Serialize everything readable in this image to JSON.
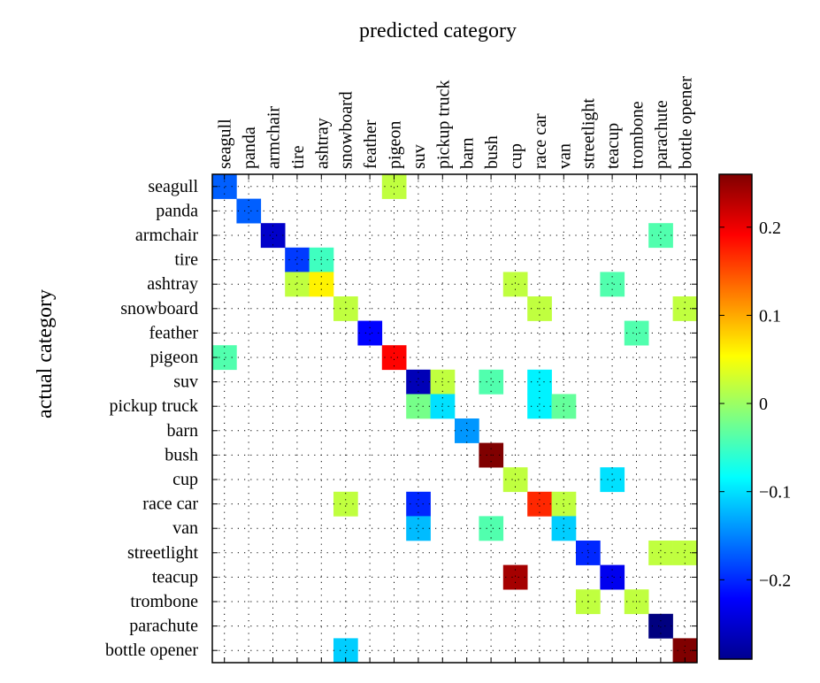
{
  "chart_data": {
    "type": "heatmap",
    "title": "",
    "xlabel": "predicted category",
    "ylabel": "actual category",
    "categories": [
      "seagull",
      "panda",
      "armchair",
      "tire",
      "ashtray",
      "snowboard",
      "feather",
      "pigeon",
      "suv",
      "pickup truck",
      "barn",
      "bush",
      "cup",
      "race car",
      "van",
      "streetlight",
      "teacup",
      "trombone",
      "parachute",
      "bottle opener"
    ],
    "grid": true,
    "colormap": "jet",
    "color_range": [
      -0.29,
      0.26
    ],
    "colorbar": {
      "ticks": [
        0.2,
        0.1,
        0,
        -0.1,
        -0.2
      ],
      "tick_labels": [
        "0.2",
        "0.1",
        "0",
        "−0.1",
        "−0.2"
      ],
      "location": "right"
    },
    "cells": [
      {
        "row": "seagull",
        "col": "seagull",
        "value": -0.17
      },
      {
        "row": "seagull",
        "col": "pigeon",
        "value": 0.02
      },
      {
        "row": "panda",
        "col": "panda",
        "value": -0.17
      },
      {
        "row": "armchair",
        "col": "armchair",
        "value": -0.25
      },
      {
        "row": "armchair",
        "col": "parachute",
        "value": -0.04
      },
      {
        "row": "tire",
        "col": "tire",
        "value": -0.19
      },
      {
        "row": "tire",
        "col": "ashtray",
        "value": -0.05
      },
      {
        "row": "ashtray",
        "col": "tire",
        "value": 0.02
      },
      {
        "row": "ashtray",
        "col": "ashtray",
        "value": 0.06
      },
      {
        "row": "ashtray",
        "col": "cup",
        "value": 0.02
      },
      {
        "row": "ashtray",
        "col": "teacup",
        "value": -0.04
      },
      {
        "row": "snowboard",
        "col": "snowboard",
        "value": 0.02
      },
      {
        "row": "snowboard",
        "col": "race car",
        "value": 0.02
      },
      {
        "row": "snowboard",
        "col": "bottle opener",
        "value": 0.02
      },
      {
        "row": "feather",
        "col": "feather",
        "value": -0.22
      },
      {
        "row": "feather",
        "col": "trombone",
        "value": -0.04
      },
      {
        "row": "pigeon",
        "col": "seagull",
        "value": -0.04
      },
      {
        "row": "pigeon",
        "col": "pigeon",
        "value": 0.19
      },
      {
        "row": "suv",
        "col": "suv",
        "value": -0.26
      },
      {
        "row": "suv",
        "col": "pickup truck",
        "value": 0.02
      },
      {
        "row": "suv",
        "col": "bush",
        "value": -0.04
      },
      {
        "row": "suv",
        "col": "race car",
        "value": -0.09
      },
      {
        "row": "pickup truck",
        "col": "suv",
        "value": -0.02
      },
      {
        "row": "pickup truck",
        "col": "pickup truck",
        "value": -0.1
      },
      {
        "row": "pickup truck",
        "col": "race car",
        "value": -0.09
      },
      {
        "row": "pickup truck",
        "col": "van",
        "value": -0.03
      },
      {
        "row": "barn",
        "col": "barn",
        "value": -0.14
      },
      {
        "row": "bush",
        "col": "bush",
        "value": 0.26
      },
      {
        "row": "cup",
        "col": "cup",
        "value": 0.02
      },
      {
        "row": "cup",
        "col": "teacup",
        "value": -0.1
      },
      {
        "row": "race car",
        "col": "snowboard",
        "value": 0.02
      },
      {
        "row": "race car",
        "col": "suv",
        "value": -0.2
      },
      {
        "row": "race car",
        "col": "race car",
        "value": 0.17
      },
      {
        "row": "race car",
        "col": "van",
        "value": 0.02
      },
      {
        "row": "van",
        "col": "suv",
        "value": -0.12
      },
      {
        "row": "van",
        "col": "bush",
        "value": -0.04
      },
      {
        "row": "van",
        "col": "van",
        "value": -0.11
      },
      {
        "row": "streetlight",
        "col": "streetlight",
        "value": -0.2
      },
      {
        "row": "streetlight",
        "col": "parachute",
        "value": 0.02
      },
      {
        "row": "streetlight",
        "col": "bottle opener",
        "value": 0.02
      },
      {
        "row": "teacup",
        "col": "cup",
        "value": 0.24
      },
      {
        "row": "teacup",
        "col": "teacup",
        "value": -0.23
      },
      {
        "row": "trombone",
        "col": "streetlight",
        "value": 0.02
      },
      {
        "row": "trombone",
        "col": "trombone",
        "value": 0.02
      },
      {
        "row": "parachute",
        "col": "parachute",
        "value": -0.29
      },
      {
        "row": "bottle opener",
        "col": "snowboard",
        "value": -0.11
      },
      {
        "row": "bottle opener",
        "col": "bottle opener",
        "value": 0.26
      }
    ]
  }
}
